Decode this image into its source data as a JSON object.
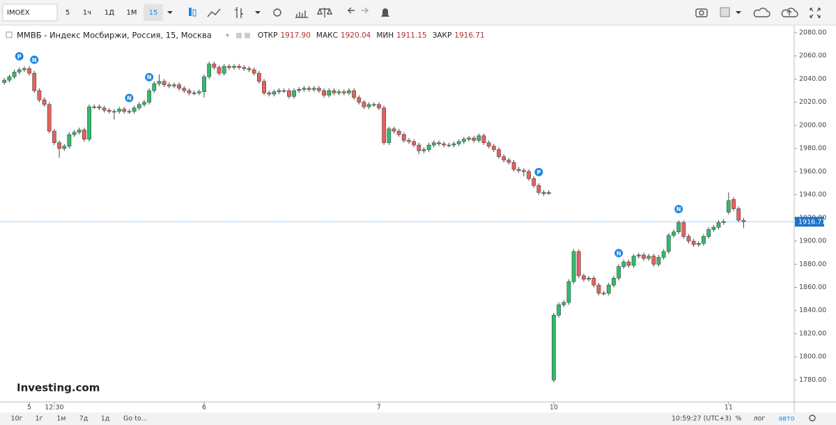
{
  "toolbar": {
    "symbol": "IMOEX",
    "intervals": [
      "5",
      "1ч",
      "1Д",
      "1М",
      "15"
    ]
  },
  "chart_data": {
    "type": "candlestick",
    "title": "ММВБ - Индекс Мосбиржи, Россия, 15, Москва",
    "ohlc_header": [
      {
        "label": "ОТКР",
        "value": "1917.90"
      },
      {
        "label": "МАКС",
        "value": "1920.04"
      },
      {
        "label": "МИН",
        "value": "1911.15"
      },
      {
        "label": "ЗАКР",
        "value": "1916.71"
      }
    ],
    "open": [
      2037,
      2039,
      2042,
      2046,
      2048,
      2049,
      2045,
      2030,
      2022,
      2018,
      1995,
      1985,
      1980,
      1982,
      1992,
      1994,
      1996,
      1988,
      2016,
      2016,
      2015,
      2013,
      2012,
      2012,
      2014,
      2012,
      2012,
      2015,
      2018,
      2020,
      2030,
      2036,
      2038,
      2035,
      2034,
      2035,
      2032,
      2030,
      2028,
      2028,
      2029,
      2042,
      2053,
      2050,
      2045,
      2051,
      2050,
      2051,
      2050,
      2049,
      2048,
      2045,
      2038,
      2028,
      2027,
      2029,
      2030,
      2030,
      2025,
      2030,
      2031,
      2032,
      2031,
      2032,
      2030,
      2026,
      2030,
      2028,
      2029,
      2028,
      2030,
      2024,
      2020,
      2016,
      2018,
      2018,
      2015,
      1985,
      1997,
      1995,
      1992,
      1987,
      1986,
      1983,
      1978,
      1979,
      1983,
      1985,
      1984,
      1983,
      1983,
      1984,
      1986,
      1988,
      1989,
      1987,
      1991,
      1985,
      1982,
      1979,
      1973,
      1970,
      1968,
      1962,
      1961,
      1960,
      1954,
      1948,
      1942,
      1941,
      1780,
      1836,
      1845,
      1847,
      1865,
      1891,
      1870,
      1867,
      1868,
      1862,
      1855,
      1855,
      1862,
      1868,
      1878,
      1882,
      1879,
      1887,
      1888,
      1885,
      1887,
      1880,
      1886,
      1891,
      1905,
      1908,
      1916,
      1904,
      1900,
      1897,
      1898,
      1904,
      1910,
      1912,
      1916,
      1925,
      1936,
      1928,
      1917.9
    ],
    "high": [
      2041,
      2044,
      2048,
      2050,
      2051,
      2051,
      2047,
      2032,
      2024,
      2020,
      1997,
      1987,
      1984,
      1994,
      1996,
      1998,
      1998,
      2018,
      2018,
      2018,
      2017,
      2015,
      2014,
      2016,
      2016,
      2014,
      2017,
      2020,
      2022,
      2032,
      2038,
      2044,
      2040,
      2037,
      2037,
      2037,
      2034,
      2032,
      2030,
      2031,
      2044,
      2055,
      2055,
      2052,
      2053,
      2053,
      2053,
      2053,
      2052,
      2051,
      2050,
      2047,
      2040,
      2030,
      2031,
      2032,
      2032,
      2032,
      2032,
      2033,
      2034,
      2034,
      2034,
      2034,
      2032,
      2032,
      2032,
      2031,
      2031,
      2032,
      2032,
      2026,
      2022,
      2020,
      2020,
      2020,
      2017,
      1999,
      1999,
      1997,
      1994,
      1989,
      1988,
      1985,
      1981,
      1985,
      1987,
      1987,
      1986,
      1985,
      1986,
      1988,
      1990,
      1991,
      1991,
      1993,
      1993,
      1987,
      1984,
      1981,
      1975,
      1972,
      1970,
      1964,
      1963,
      1962,
      1956,
      1950,
      1944,
      1944,
      1838,
      1847,
      1849,
      1867,
      1893,
      1893,
      1872,
      1870,
      1870,
      1864,
      1857,
      1864,
      1870,
      1880,
      1884,
      1884,
      1889,
      1890,
      1890,
      1889,
      1889,
      1888,
      1893,
      1907,
      1910,
      1918,
      1918,
      1906,
      1902,
      1900,
      1906,
      1912,
      1914,
      1918,
      1919,
      1942,
      1938,
      1930,
      1920.04
    ],
    "low": [
      2035,
      2037,
      2040,
      2044,
      2046,
      2043,
      2028,
      2020,
      2016,
      1993,
      1983,
      1972,
      1978,
      1980,
      1990,
      1992,
      1986,
      1986,
      2014,
      2013,
      2011,
      2010,
      2005,
      2010,
      2010,
      2010,
      2010,
      2013,
      2016,
      2018,
      2028,
      2034,
      2033,
      2032,
      2032,
      2030,
      2028,
      2026,
      2026,
      2026,
      2024,
      2040,
      2048,
      2043,
      2043,
      2048,
      2048,
      2048,
      2047,
      2046,
      2043,
      2036,
      2026,
      2025,
      2025,
      2027,
      2028,
      2023,
      2023,
      2028,
      2029,
      2029,
      2029,
      2028,
      2024,
      2024,
      2026,
      2026,
      2026,
      2026,
      2022,
      2018,
      2014,
      2014,
      2016,
      2013,
      1983,
      1983,
      1993,
      1990,
      1985,
      1984,
      1981,
      1975,
      1976,
      1977,
      1981,
      1982,
      1981,
      1981,
      1981,
      1982,
      1984,
      1986,
      1985,
      1985,
      1983,
      1980,
      1977,
      1971,
      1968,
      1966,
      1960,
      1959,
      1956,
      1952,
      1946,
      1940,
      1939,
      1940,
      1778,
      1834,
      1843,
      1845,
      1863,
      1868,
      1865,
      1865,
      1860,
      1853,
      1853,
      1853,
      1860,
      1866,
      1876,
      1877,
      1877,
      1885,
      1883,
      1883,
      1878,
      1878,
      1884,
      1889,
      1903,
      1906,
      1902,
      1898,
      1895,
      1895,
      1896,
      1902,
      1908,
      1910,
      1914,
      1923,
      1926,
      1916,
      1911.15
    ],
    "close": [
      2039,
      2042,
      2046,
      2048,
      2049,
      2045,
      2030,
      2022,
      2018,
      1995,
      1985,
      1980,
      1982,
      1992,
      1994,
      1996,
      1988,
      2016,
      2016,
      2015,
      2013,
      2012,
      2012,
      2014,
      2012,
      2012,
      2015,
      2018,
      2020,
      2030,
      2036,
      2038,
      2035,
      2034,
      2035,
      2032,
      2030,
      2028,
      2028,
      2029,
      2042,
      2053,
      2050,
      2045,
      2051,
      2050,
      2051,
      2050,
      2049,
      2048,
      2045,
      2038,
      2028,
      2027,
      2029,
      2030,
      2030,
      2025,
      2030,
      2031,
      2032,
      2031,
      2032,
      2030,
      2026,
      2030,
      2028,
      2029,
      2028,
      2030,
      2024,
      2020,
      2016,
      2018,
      2018,
      2015,
      1985,
      1997,
      1995,
      1992,
      1987,
      1986,
      1983,
      1978,
      1979,
      1983,
      1985,
      1984,
      1983,
      1983,
      1984,
      1986,
      1988,
      1989,
      1987,
      1991,
      1985,
      1982,
      1979,
      1973,
      1970,
      1968,
      1962,
      1961,
      1960,
      1954,
      1948,
      1942,
      1941,
      1942,
      1836,
      1845,
      1847,
      1865,
      1891,
      1870,
      1867,
      1868,
      1862,
      1855,
      1855,
      1862,
      1868,
      1878,
      1882,
      1879,
      1887,
      1888,
      1885,
      1887,
      1880,
      1886,
      1891,
      1905,
      1908,
      1916,
      1904,
      1900,
      1897,
      1898,
      1904,
      1910,
      1912,
      1916,
      1917,
      1935,
      1928,
      1918,
      1916.71
    ],
    "up_color": "#2ebd6b",
    "down_color": "#e8605c",
    "xticks": [
      {
        "value": 5,
        "label": "5"
      },
      {
        "value": 10,
        "label": "12:30"
      },
      {
        "value": 40,
        "label": "6"
      },
      {
        "value": 75,
        "label": "7"
      },
      {
        "value": 110,
        "label": "10"
      },
      {
        "value": 145,
        "label": "11"
      }
    ],
    "ylim": [
      1761,
      2086
    ],
    "yticks": [
      {
        "value": 1780,
        "label": "1780.00"
      },
      {
        "value": 1800,
        "label": "1800.00"
      },
      {
        "value": 1820,
        "label": "1820.00"
      },
      {
        "value": 1840,
        "label": "1840.00"
      },
      {
        "value": 1860,
        "label": "1860.00"
      },
      {
        "value": 1880,
        "label": "1880.00"
      },
      {
        "value": 1900,
        "label": "1900.00"
      },
      {
        "value": 1920,
        "label": "1920.00"
      },
      {
        "value": 1940,
        "label": "1940.00"
      },
      {
        "value": 1960,
        "label": "1960.00"
      },
      {
        "value": 1980,
        "label": "1980.00"
      },
      {
        "value": 2000,
        "label": "2000.00"
      },
      {
        "value": 2020,
        "label": "2020.00"
      },
      {
        "value": 2040,
        "label": "2040.00"
      },
      {
        "value": 2060,
        "label": "2060.00"
      },
      {
        "value": 2080,
        "label": "2080.00"
      }
    ],
    "annotations": [
      {
        "label": "P",
        "index": 3
      },
      {
        "label": "N",
        "index": 6
      },
      {
        "label": "N",
        "index": 25
      },
      {
        "label": "N",
        "index": 29
      },
      {
        "label": "P",
        "index": 107
      },
      {
        "label": "N",
        "index": 123
      },
      {
        "label": "N",
        "index": 135
      }
    ],
    "watermark": "Investing.com"
  },
  "bottom_bar": {
    "ranges": [
      "10г",
      "1г",
      "1м",
      "7д",
      "1д"
    ],
    "goto": "Go to...",
    "clock": "10:59:27 (UTC+3)",
    "scale_options": [
      "%",
      "лог",
      "авто"
    ]
  }
}
